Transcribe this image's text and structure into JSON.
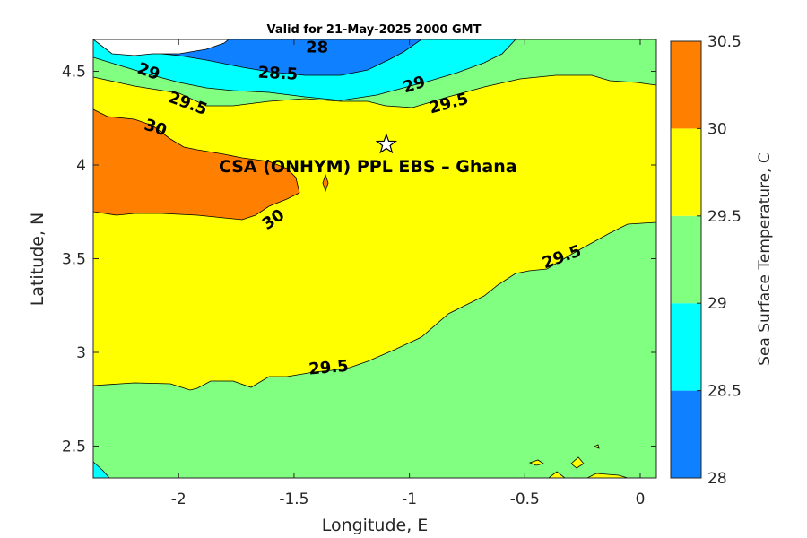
{
  "title": "Valid for 21-May-2025 2000 GMT",
  "site_label": "CSA (ONHYM) PPL EBS  – Ghana",
  "site_marker": {
    "icon": "star-icon",
    "lon": -1.1,
    "lat": 4.11
  },
  "colors": {
    "c28": "#0f80ff",
    "c28_5": "#00ffff",
    "c29": "#80ff80",
    "c29_5": "#ffff00",
    "c30": "#ff8000",
    "nodata": "#ffffff"
  },
  "chart_data": {
    "type": "contour",
    "xlabel": "Longitude, E",
    "ylabel": "Latitude, N",
    "xlim": [
      -2.37,
      0.07
    ],
    "ylim": [
      2.33,
      4.67
    ],
    "x_ticks": [
      -2,
      -1.5,
      -1,
      -0.5,
      0
    ],
    "x_tick_labels": [
      "-2",
      "-1.5",
      "-1",
      "-0.5",
      "0"
    ],
    "y_ticks": [
      2.5,
      3,
      3.5,
      4,
      4.5
    ],
    "y_tick_labels": [
      "2.5",
      "3",
      "3.5",
      "4",
      "4.5"
    ],
    "colorbar": {
      "label": "Sea Surface Temperature, C",
      "ticks": [
        "28",
        "28.5",
        "29",
        "29.5",
        "30",
        "30.5"
      ],
      "levels": [
        28,
        28.5,
        29,
        29.5,
        30,
        30.5
      ]
    },
    "contour_labels": [
      {
        "text": "28",
        "lon": -1.4,
        "lat": 4.63,
        "angle": 0
      },
      {
        "text": "29",
        "lon": -2.13,
        "lat": 4.5,
        "angle": 20
      },
      {
        "text": "28.5",
        "lon": -1.57,
        "lat": 4.49,
        "angle": 3
      },
      {
        "text": "29",
        "lon": -0.98,
        "lat": 4.43,
        "angle": -18
      },
      {
        "text": "29.5",
        "lon": -1.96,
        "lat": 4.33,
        "angle": 20
      },
      {
        "text": "29.5",
        "lon": -0.83,
        "lat": 4.33,
        "angle": -15
      },
      {
        "text": "30",
        "lon": -2.1,
        "lat": 4.2,
        "angle": 18
      },
      {
        "text": "30",
        "lon": -1.59,
        "lat": 3.71,
        "angle": -35
      },
      {
        "text": "29.5",
        "lon": -0.34,
        "lat": 3.51,
        "angle": -20
      },
      {
        "text": "29.5",
        "lon": -1.35,
        "lat": 2.92,
        "angle": -5
      }
    ]
  }
}
